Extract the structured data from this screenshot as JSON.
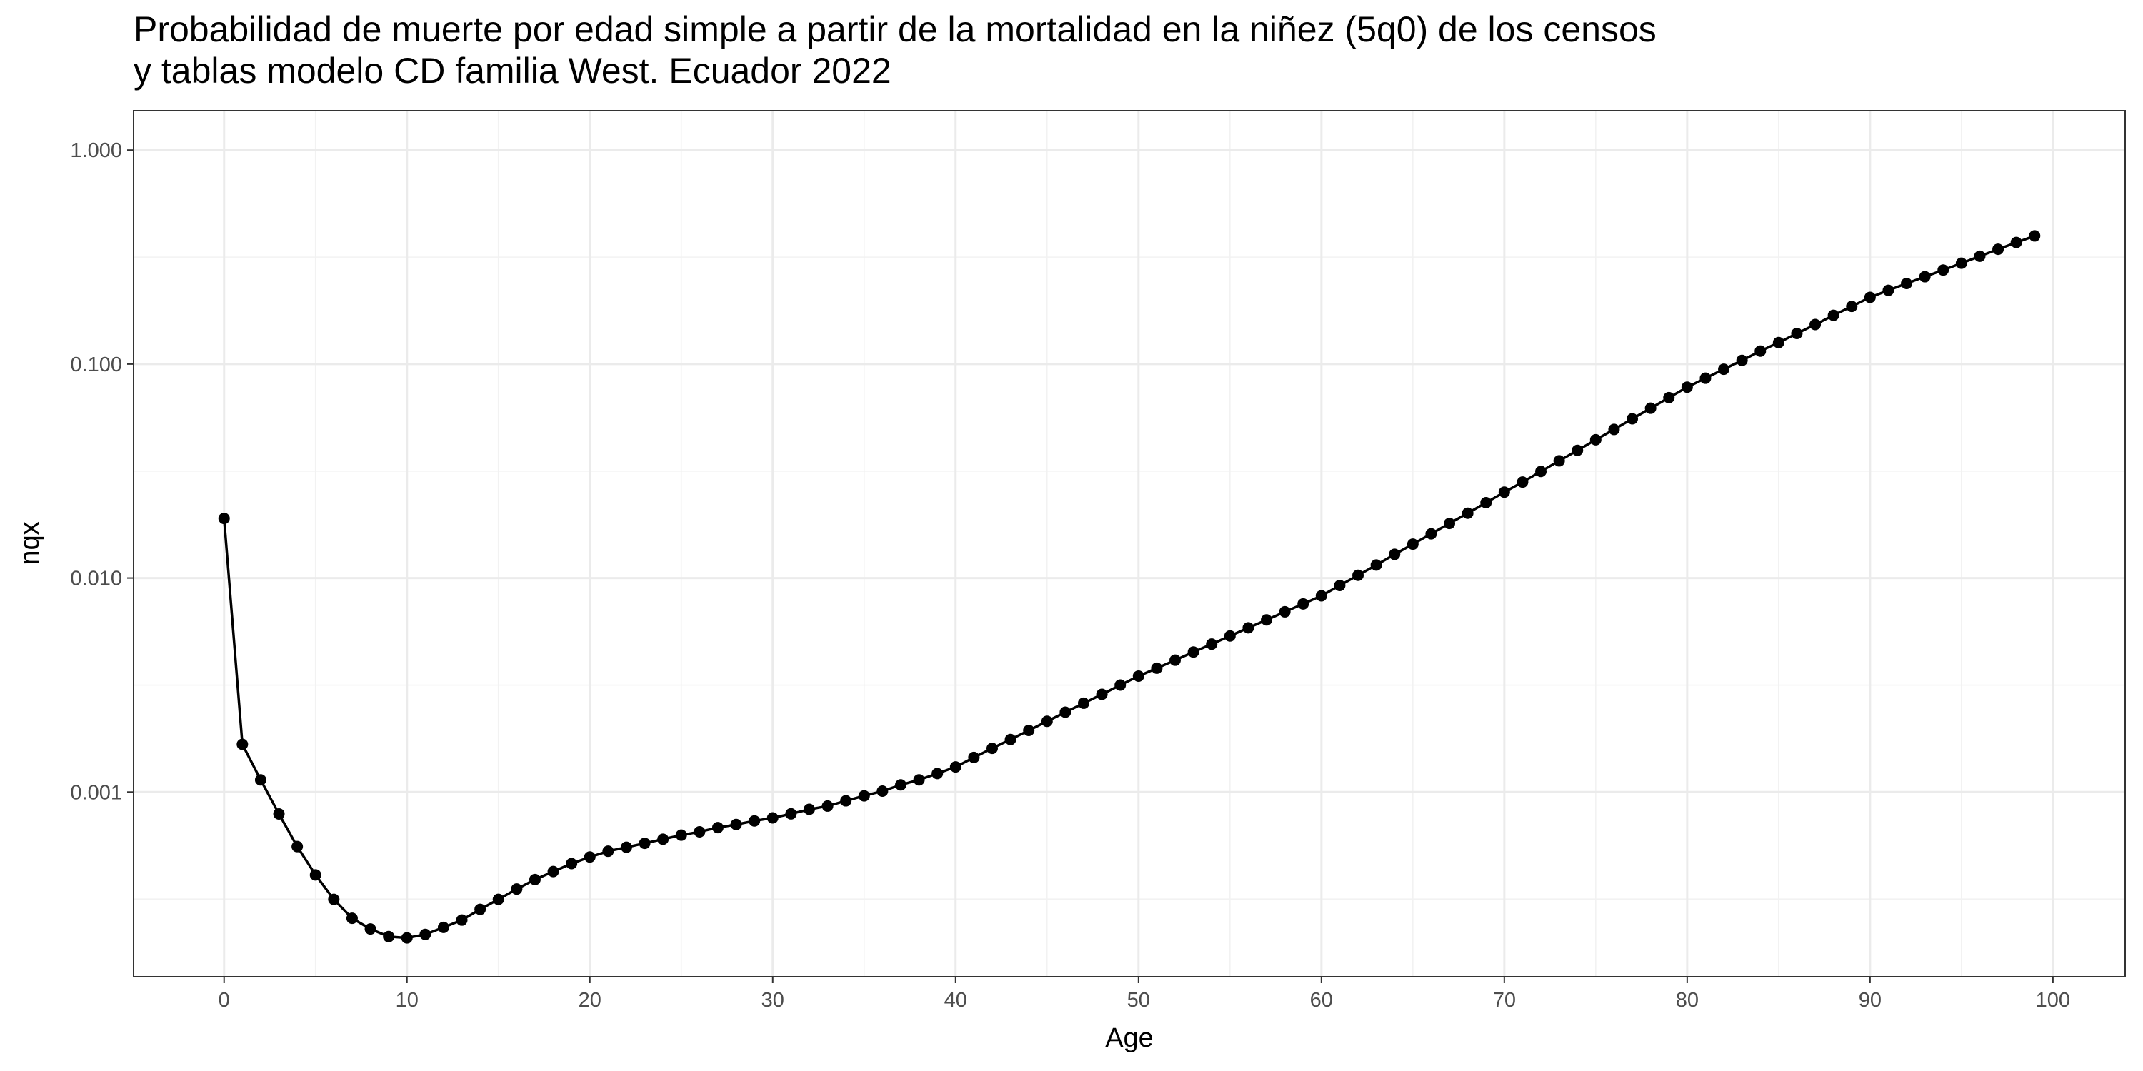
{
  "chart_data": {
    "type": "line",
    "title": [
      "Probabilidad de muerte por edad simple a partir de la mortalidad en la niñez (5q0) de los censos",
      "y tablas modelo CD familia West. Ecuador 2022"
    ],
    "x_label": "Age",
    "y_label": "nqx",
    "color": "#000000",
    "markers": true,
    "log_y": true,
    "grid": true,
    "x": [
      0,
      1,
      2,
      3,
      4,
      5,
      6,
      7,
      8,
      9,
      10,
      11,
      12,
      13,
      14,
      15,
      16,
      17,
      18,
      19,
      20,
      21,
      22,
      23,
      24,
      25,
      26,
      27,
      28,
      29,
      30,
      31,
      32,
      33,
      34,
      35,
      36,
      37,
      38,
      39,
      40,
      41,
      42,
      43,
      44,
      45,
      46,
      47,
      48,
      49,
      50,
      51,
      52,
      53,
      54,
      55,
      56,
      57,
      58,
      59,
      60,
      61,
      62,
      63,
      64,
      65,
      66,
      67,
      68,
      69,
      70,
      71,
      72,
      73,
      74,
      75,
      76,
      77,
      78,
      79,
      80,
      81,
      82,
      83,
      84,
      85,
      86,
      87,
      88,
      89,
      90,
      91,
      92,
      93,
      94,
      95,
      96,
      97,
      98,
      99
    ],
    "values": [
      0.019,
      0.00167,
      0.00114,
      0.00079,
      0.000556,
      0.00041,
      0.000315,
      0.000257,
      0.000229,
      0.000211,
      0.000208,
      0.000216,
      0.000233,
      0.000252,
      0.000283,
      0.000315,
      0.000352,
      0.00039,
      0.000425,
      0.000463,
      0.000497,
      0.000529,
      0.000552,
      0.000576,
      0.000602,
      0.000629,
      0.000652,
      0.000682,
      0.000705,
      0.000733,
      0.000757,
      0.000791,
      0.00083,
      0.00086,
      0.00091,
      0.00096,
      0.00101,
      0.00108,
      0.00114,
      0.00122,
      0.00131,
      0.00145,
      0.0016,
      0.00176,
      0.00194,
      0.00214,
      0.00236,
      0.0026,
      0.00286,
      0.00316,
      0.00348,
      0.00379,
      0.00413,
      0.00451,
      0.00491,
      0.00536,
      0.00585,
      0.00637,
      0.00695,
      0.00757,
      0.00826,
      0.00923,
      0.0103,
      0.0115,
      0.0129,
      0.0144,
      0.0161,
      0.018,
      0.0201,
      0.0225,
      0.0252,
      0.0281,
      0.0315,
      0.0353,
      0.0395,
      0.0443,
      0.0495,
      0.0555,
      0.0622,
      0.0697,
      0.078,
      0.0859,
      0.0946,
      0.104,
      0.115,
      0.126,
      0.139,
      0.153,
      0.169,
      0.186,
      0.205,
      0.221,
      0.238,
      0.256,
      0.275,
      0.296,
      0.319,
      0.344,
      0.37,
      0.397
    ],
    "xlim": [
      -4.95,
      103.95
    ],
    "xticks": [
      0,
      10,
      20,
      30,
      40,
      50,
      60,
      70,
      80,
      90,
      100
    ],
    "x_minor_gridlines": [
      5,
      15,
      25,
      35,
      45,
      55,
      65,
      75,
      85,
      95
    ],
    "ylim": [
      0.000137,
      1.528
    ],
    "yticks": [
      {
        "value": 0.001,
        "label": "0.001"
      },
      {
        "value": 0.01,
        "label": "0.010"
      },
      {
        "value": 0.1,
        "label": "0.100"
      },
      {
        "value": 1,
        "label": "1.000"
      }
    ],
    "y_minor_gridlines": [
      0.000316,
      0.00316,
      0.0316,
      0.316
    ]
  }
}
